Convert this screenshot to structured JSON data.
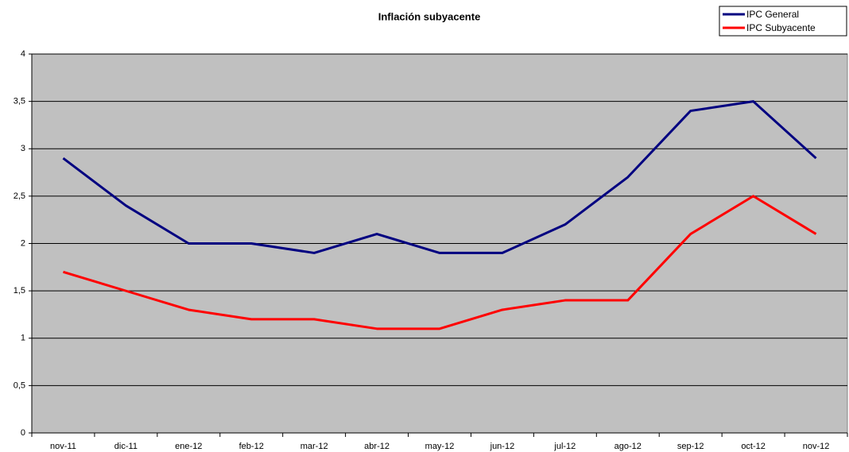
{
  "chart_data": {
    "type": "line",
    "title": "Inflación subyacente",
    "categories": [
      "nov-11",
      "dic-11",
      "ene-12",
      "feb-12",
      "mar-12",
      "abr-12",
      "may-12",
      "jun-12",
      "jul-12",
      "ago-12",
      "sep-12",
      "oct-12",
      "nov-12"
    ],
    "series": [
      {
        "name": "IPC General",
        "color": "#000080",
        "values": [
          2.9,
          2.4,
          2.0,
          2.0,
          1.9,
          2.1,
          1.9,
          1.9,
          2.2,
          2.7,
          3.4,
          3.5,
          2.9
        ]
      },
      {
        "name": "IPC Subyacente",
        "color": "#ff0000",
        "values": [
          1.7,
          1.5,
          1.3,
          1.2,
          1.2,
          1.1,
          1.1,
          1.3,
          1.4,
          1.4,
          2.1,
          2.5,
          2.1
        ]
      }
    ],
    "ylim": [
      0,
      4
    ],
    "yticks": [
      0,
      {
        "value": 0.5,
        "label": "0,5"
      },
      1,
      {
        "value": 1.5,
        "label": "1,5"
      },
      2,
      {
        "value": 2.5,
        "label": "2,5"
      },
      3,
      {
        "value": 3.5,
        "label": "3,5"
      },
      4
    ],
    "grid": true,
    "legend": "top-right"
  }
}
